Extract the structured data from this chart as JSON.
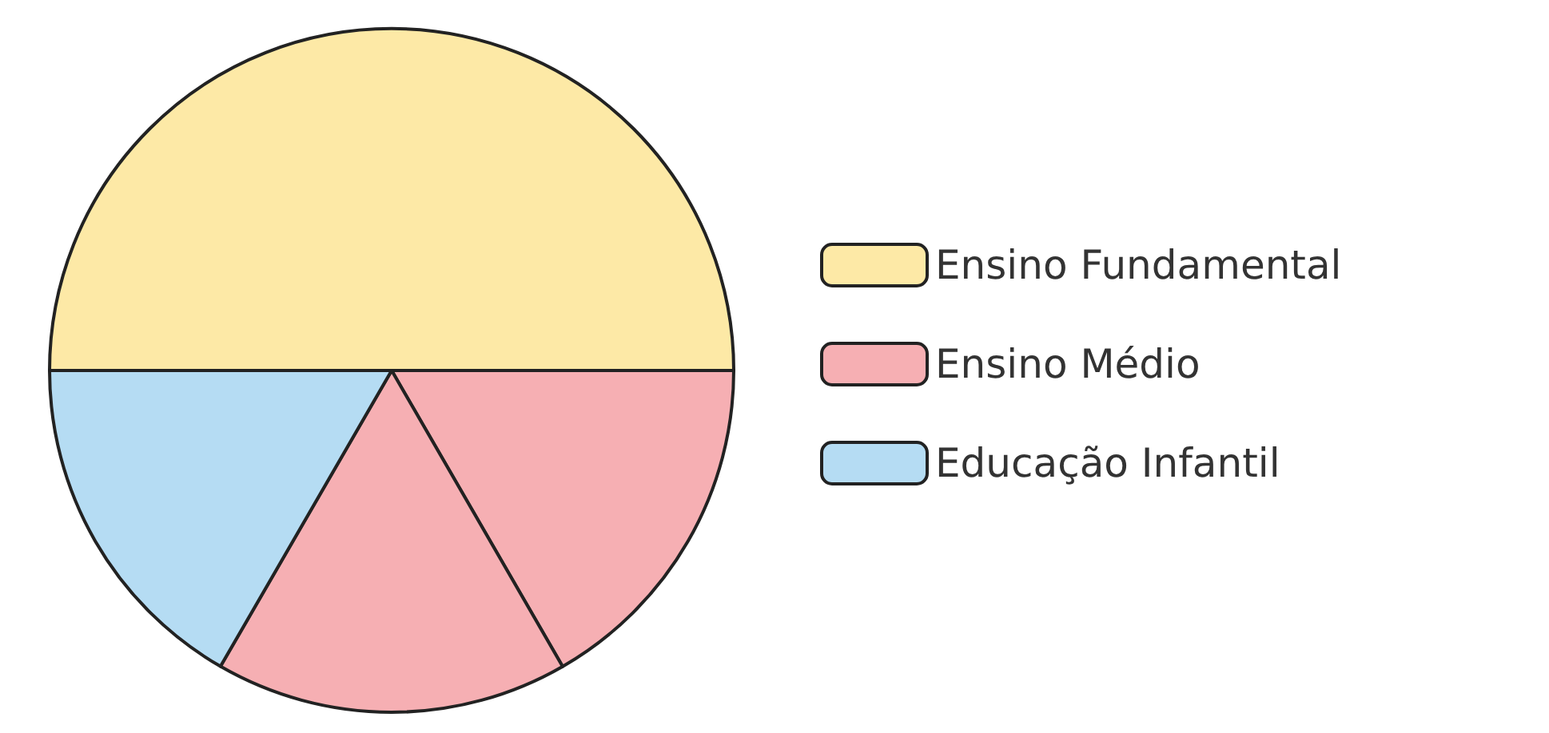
{
  "chart_data": {
    "type": "pie",
    "categories": [
      "Ensino Fundamental",
      "Ensino Médio",
      null,
      "Educação Infantil"
    ],
    "values": [
      50,
      16.67,
      16.67,
      16.66
    ],
    "colors": [
      "#fde9a6",
      "#f6afb3",
      "#f6afb3",
      "#b5dcf3"
    ],
    "legend": "right"
  }
}
